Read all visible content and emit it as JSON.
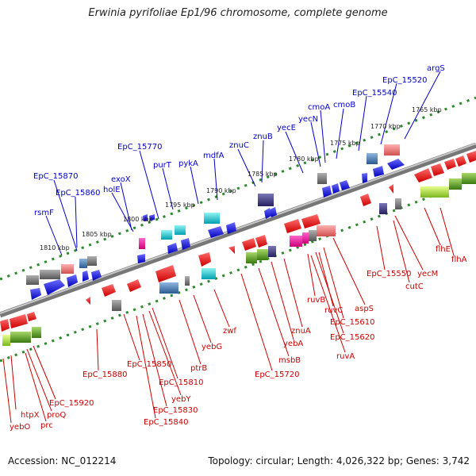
{
  "title": "Erwinia pyrifoliae Ep1/96 chromosome, complete genome",
  "accession": "Accession: NC_012214",
  "topology": "Topology: circular; Length: 4,026,322 bp; Genes: 3,742",
  "kbp_ticks": [
    "1765 kbp",
    "1770 kbp",
    "1775 kbp",
    "1780 kbp",
    "1785 kbp",
    "1790 kbp",
    "1795 kbp",
    "1800 kbp",
    "1805 kbp",
    "1810 kbp"
  ],
  "upper_labels": [
    "argS",
    "EpC_15520",
    "EpC_15540",
    "cmoB",
    "cmoA",
    "yecN",
    "yecE",
    "znuB",
    "znuC",
    "mdfA",
    "pykA",
    "purT",
    "EpC_15770",
    "exoX",
    "holE",
    "EpC_15860",
    "EpC_15870",
    "rsmF"
  ],
  "lower_labels": [
    "flhA",
    "flhE",
    "yecM",
    "cutC",
    "EpC_15550",
    "aspS",
    "EpC_15610",
    "EpC_15620",
    "ruvC",
    "ruvA",
    "ruvB",
    "znuA",
    "yebA",
    "msbB",
    "EpC_15720",
    "zwf",
    "yebG",
    "ptrB",
    "EpC_15810",
    "yebY",
    "EpC_15830",
    "EpC_15840",
    "EpC_15850",
    "EpC_15880",
    "EpC_15920",
    "proQ",
    "prc",
    "htpX",
    "yebO"
  ],
  "colors": {
    "forward_labels": "#0000cc",
    "reverse_labels": "#cc0000",
    "backbone": "#888888",
    "ticks": "#2a8a2a"
  }
}
